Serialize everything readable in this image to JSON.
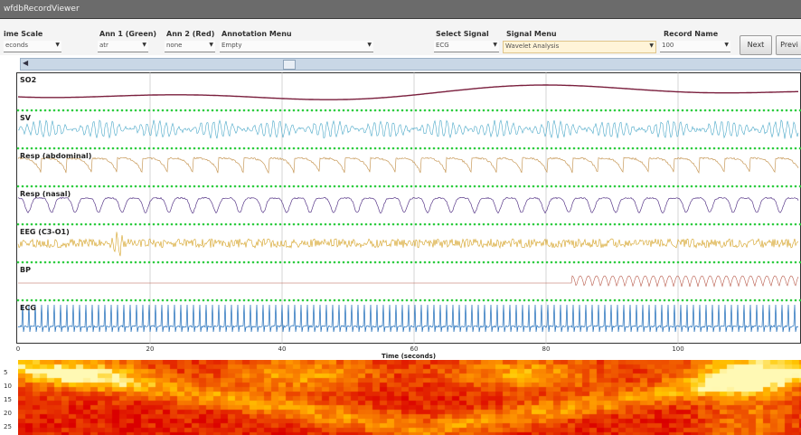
{
  "window": {
    "title": "wfdbRecordViewer"
  },
  "toolbar": {
    "time_scale": {
      "label": "ime Scale",
      "value": "econds"
    },
    "ann1": {
      "label": "Ann 1 (Green)",
      "value": "atr"
    },
    "ann2": {
      "label": "Ann 2 (Red)",
      "value": "none"
    },
    "annotation_menu": {
      "label": "Annotation Menu",
      "value": "Empty"
    },
    "select_signal": {
      "label": "Select Signal",
      "value": "ECG"
    },
    "signal_menu": {
      "label": "Signal Menu",
      "value": "Wavelet Analysis"
    },
    "record_name": {
      "label": "Record Name",
      "value": "100"
    },
    "next_label": "Next",
    "previous_label": "Previ"
  },
  "channels": [
    "SO2",
    "SV",
    "Resp (abdominal)",
    "Resp (nasal)",
    "EEG (C3-O1)",
    "BP",
    "ECG"
  ],
  "colors": {
    "SO2": "#7a1f3d",
    "SV": "#4aa8c8",
    "Resp (abdominal)": "#c89a5a",
    "Resp (nasal)": "#5a3a8a",
    "EEG (C3-O1)": "#d4a020",
    "BP": "#b85a4a",
    "ECG": "#1a6ab8",
    "annotation_dot": "#2ecc40"
  },
  "x_axis": {
    "label": "Time (seconds)",
    "ticks": [
      "0",
      "20",
      "40",
      "60",
      "80",
      "100"
    ]
  },
  "spectrogram": {
    "y_ticks": [
      "5",
      "10",
      "15",
      "20",
      "25"
    ]
  }
}
